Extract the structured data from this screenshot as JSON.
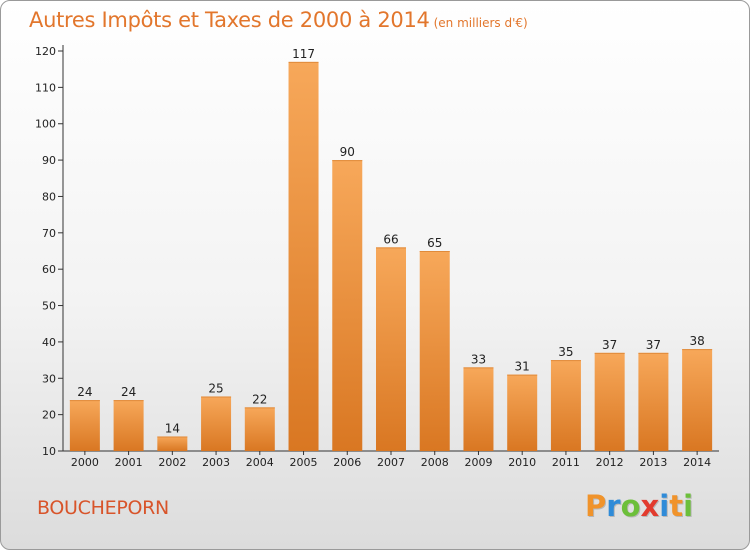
{
  "header": {
    "title": "Autres Impôts et Taxes de 2000 à 2014",
    "subtitle": "(en milliers d'€)"
  },
  "footer": {
    "commune": "BOUCHEPORN",
    "logo_letters": [
      "P",
      "r",
      "o",
      "x",
      "i",
      "t",
      "i"
    ],
    "logo_colors": [
      "#f0932b",
      "#2f8bd8",
      "#6cbf3a",
      "#e23b2e",
      "#2f8bd8",
      "#f0932b",
      "#6cbf3a"
    ]
  },
  "colors": {
    "bar_light": "#f7a85a",
    "bar_dark": "#d97722",
    "title": "#e2762c",
    "commune": "#d8542a"
  },
  "chart_data": {
    "type": "bar",
    "title": "Autres Impôts et Taxes de 2000 à 2014",
    "subtitle": "(en milliers d'€)",
    "categories": [
      "2000",
      "2001",
      "2002",
      "2003",
      "2004",
      "2005",
      "2006",
      "2007",
      "2008",
      "2009",
      "2010",
      "2011",
      "2012",
      "2013",
      "2014"
    ],
    "values": [
      24,
      24,
      14,
      25,
      22,
      117,
      90,
      66,
      65,
      33,
      31,
      35,
      37,
      37,
      38
    ],
    "ylim": [
      10,
      120
    ],
    "yticks": [
      10,
      20,
      30,
      40,
      50,
      60,
      70,
      80,
      90,
      100,
      110,
      120
    ],
    "grid": false,
    "data_labels": true
  }
}
